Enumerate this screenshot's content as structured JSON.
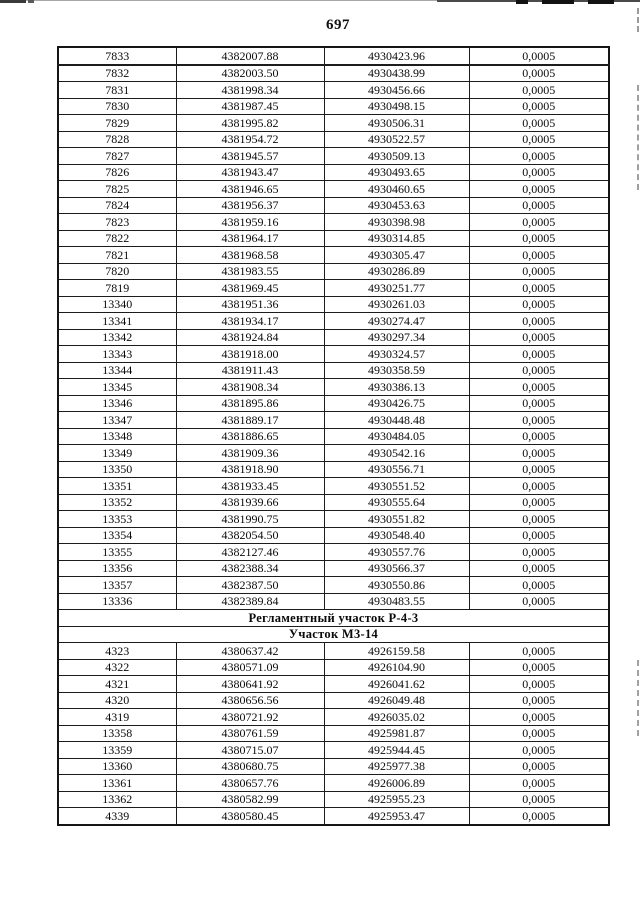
{
  "page": {
    "number": "697"
  },
  "accent_colors": {
    "ink": "#0a0a0a",
    "paper": "#ffffff",
    "scan_artifact_gray": "#9f9f9f"
  },
  "table": {
    "sections": [
      {
        "type": "rows",
        "rows": [
          [
            "7833",
            "4382007.88",
            "4930423.96",
            "0,0005"
          ],
          [
            "7832",
            "4382003.50",
            "4930438.99",
            "0,0005"
          ],
          [
            "7831",
            "4381998.34",
            "4930456.66",
            "0,0005"
          ],
          [
            "7830",
            "4381987.45",
            "4930498.15",
            "0,0005"
          ],
          [
            "7829",
            "4381995.82",
            "4930506.31",
            "0,0005"
          ],
          [
            "7828",
            "4381954.72",
            "4930522.57",
            "0,0005"
          ],
          [
            "7827",
            "4381945.57",
            "4930509.13",
            "0,0005"
          ],
          [
            "7826",
            "4381943.47",
            "4930493.65",
            "0,0005"
          ],
          [
            "7825",
            "4381946.65",
            "4930460.65",
            "0,0005"
          ],
          [
            "7824",
            "4381956.37",
            "4930453.63",
            "0,0005"
          ],
          [
            "7823",
            "4381959.16",
            "4930398.98",
            "0,0005"
          ],
          [
            "7822",
            "4381964.17",
            "4930314.85",
            "0,0005"
          ],
          [
            "7821",
            "4381968.58",
            "4930305.47",
            "0,0005"
          ],
          [
            "7820",
            "4381983.55",
            "4930286.89",
            "0,0005"
          ],
          [
            "7819",
            "4381969.45",
            "4930251.77",
            "0,0005"
          ],
          [
            "13340",
            "4381951.36",
            "4930261.03",
            "0,0005"
          ],
          [
            "13341",
            "4381934.17",
            "4930274.47",
            "0,0005"
          ],
          [
            "13342",
            "4381924.84",
            "4930297.34",
            "0,0005"
          ],
          [
            "13343",
            "4381918.00",
            "4930324.57",
            "0,0005"
          ],
          [
            "13344",
            "4381911.43",
            "4930358.59",
            "0,0005"
          ],
          [
            "13345",
            "4381908.34",
            "4930386.13",
            "0,0005"
          ],
          [
            "13346",
            "4381895.86",
            "4930426.75",
            "0,0005"
          ],
          [
            "13347",
            "4381889.17",
            "4930448.48",
            "0,0005"
          ],
          [
            "13348",
            "4381886.65",
            "4930484.05",
            "0,0005"
          ],
          [
            "13349",
            "4381909.36",
            "4930542.16",
            "0,0005"
          ],
          [
            "13350",
            "4381918.90",
            "4930556.71",
            "0,0005"
          ],
          [
            "13351",
            "4381933.45",
            "4930551.52",
            "0,0005"
          ],
          [
            "13352",
            "4381939.66",
            "4930555.64",
            "0,0005"
          ],
          [
            "13353",
            "4381990.75",
            "4930551.82",
            "0,0005"
          ],
          [
            "13354",
            "4382054.50",
            "4930548.40",
            "0,0005"
          ],
          [
            "13355",
            "4382127.46",
            "4930557.76",
            "0,0005"
          ],
          [
            "13356",
            "4382388.34",
            "4930566.37",
            "0,0005"
          ],
          [
            "13357",
            "4382387.50",
            "4930550.86",
            "0,0005"
          ],
          [
            "13336",
            "4382389.84",
            "4930483.55",
            "0,0005"
          ]
        ]
      },
      {
        "type": "header",
        "label": "Регламентный участок Р-4-3"
      },
      {
        "type": "header",
        "label": "Участок М3-14"
      },
      {
        "type": "rows",
        "rows": [
          [
            "4323",
            "4380637.42",
            "4926159.58",
            "0,0005"
          ],
          [
            "4322",
            "4380571.09",
            "4926104.90",
            "0,0005"
          ],
          [
            "4321",
            "4380641.92",
            "4926041.62",
            "0,0005"
          ],
          [
            "4320",
            "4380656.56",
            "4926049.48",
            "0,0005"
          ],
          [
            "4319",
            "4380721.92",
            "4926035.02",
            "0,0005"
          ],
          [
            "13358",
            "4380761.59",
            "4925981.87",
            "0,0005"
          ],
          [
            "13359",
            "4380715.07",
            "4925944.45",
            "0,0005"
          ],
          [
            "13360",
            "4380680.75",
            "4925977.38",
            "0,0005"
          ],
          [
            "13361",
            "4380657.76",
            "4926006.89",
            "0,0005"
          ],
          [
            "13362",
            "4380582.99",
            "4925955.23",
            "0,0005"
          ],
          [
            "4339",
            "4380580.45",
            "4925953.47",
            "0,0005"
          ]
        ]
      }
    ]
  }
}
